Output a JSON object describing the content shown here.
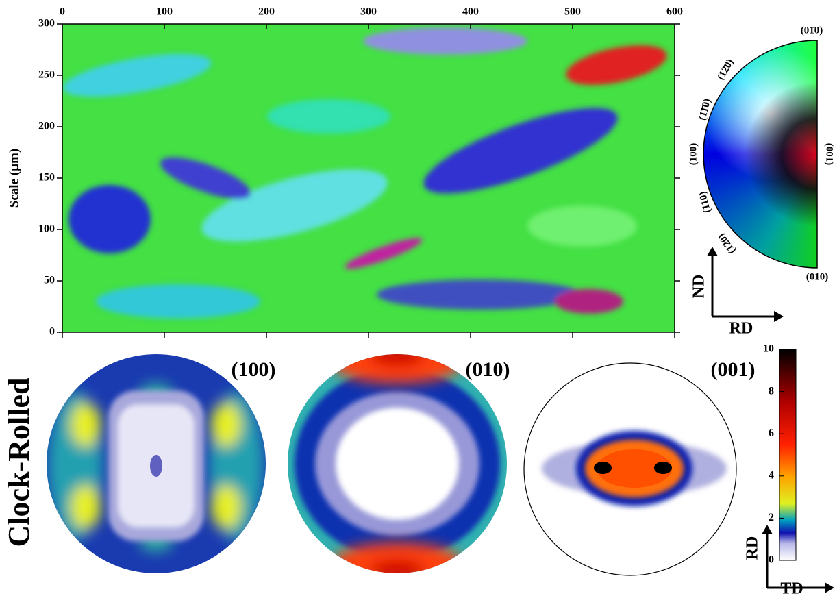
{
  "chart_data": [
    {
      "type": "map",
      "ylabel": "Scale (µm)",
      "xlim": [
        0,
        600
      ],
      "ylim": [
        0,
        300
      ],
      "xticks": [
        0,
        100,
        200,
        300,
        400,
        500,
        600
      ],
      "yticks": [
        0,
        50,
        100,
        150,
        200,
        250,
        300
      ]
    },
    {
      "type": "pole-figure",
      "title": "(100)"
    },
    {
      "type": "pole-figure",
      "title": "(010)"
    },
    {
      "type": "pole-figure",
      "title": "(001)"
    },
    {
      "type": "colorbar",
      "ylim": [
        0,
        10
      ],
      "yticks": [
        0,
        2,
        4,
        6,
        8,
        10
      ]
    }
  ],
  "ipf_key": {
    "labels": [
      "(01̄0)",
      "(12̄0)",
      "(11̄0)",
      "(100)",
      "(110)",
      "(120)",
      "(010)",
      "(001)"
    ]
  },
  "map_axes": {
    "vertical": "ND",
    "horizontal": "RD"
  },
  "row_label": "Clock-Rolled",
  "pole_axes": {
    "vertical": "RD",
    "horizontal": "TD"
  }
}
